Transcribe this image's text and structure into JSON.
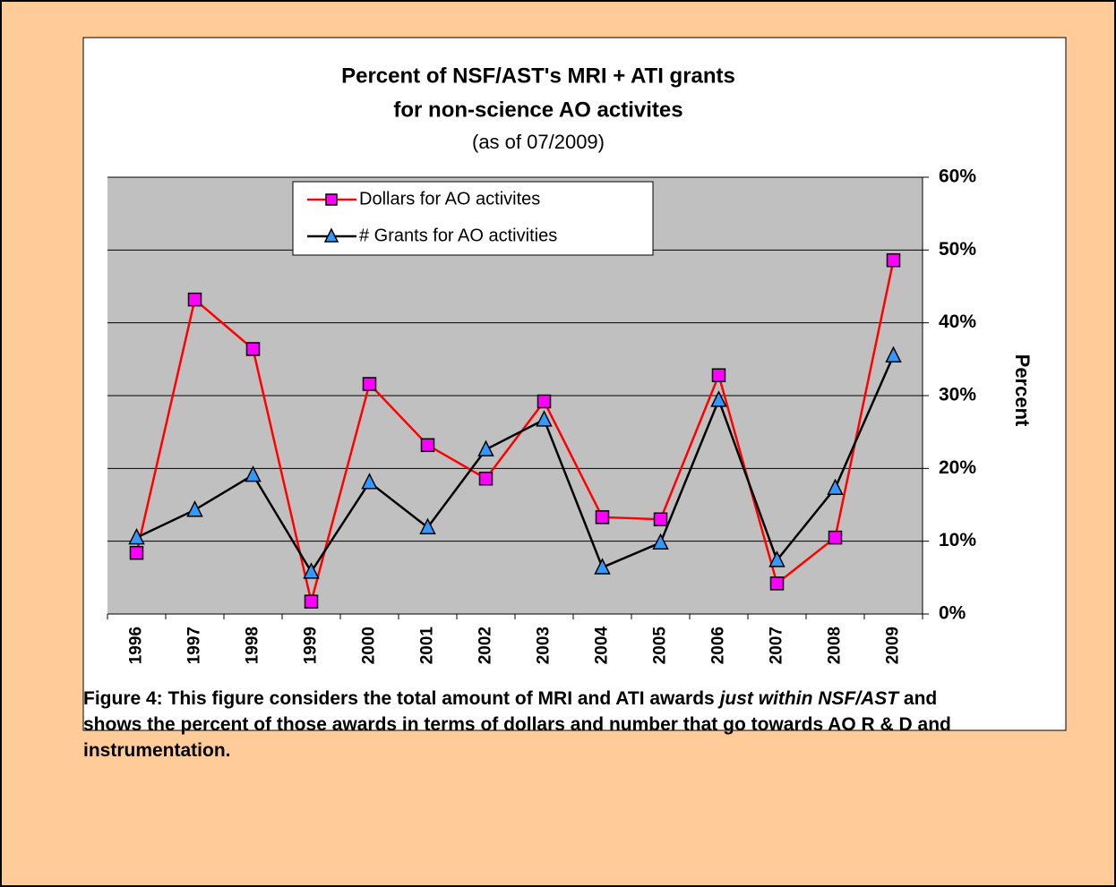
{
  "chart_data": {
    "type": "line",
    "title": [
      "Percent of NSF/AST's  MRI + ATI grants",
      "for non-science AO activites"
    ],
    "subtitle": "(as of 07/2009)",
    "y_label": "Percent",
    "categories": [
      "1996",
      "1997",
      "1998",
      "1999",
      "2000",
      "2001",
      "2002",
      "2003",
      "2004",
      "2005",
      "2006",
      "2007",
      "2008",
      "2009"
    ],
    "series": [
      {
        "name": "Dollars for AO activites",
        "color": "#ff0000",
        "marker": "square",
        "marker_color": "#ff00ff",
        "values": [
          8.4,
          43.2,
          36.4,
          1.7,
          31.6,
          23.2,
          18.6,
          29.2,
          13.3,
          13.0,
          32.8,
          4.2,
          10.5,
          48.6
        ]
      },
      {
        "name": "# Grants for AO activities",
        "color": "#000000",
        "marker": "triangle",
        "marker_color": "#3399ff",
        "values": [
          10.5,
          14.3,
          19.1,
          5.8,
          18.1,
          11.9,
          22.6,
          26.7,
          6.4,
          9.8,
          29.4,
          7.4,
          17.3,
          35.5
        ]
      }
    ],
    "ylim": [
      0,
      60
    ],
    "yticks": [
      {
        "value": 0,
        "label": "0%"
      },
      {
        "value": 10,
        "label": "10%"
      },
      {
        "value": 20,
        "label": "20%"
      },
      {
        "value": 30,
        "label": "30%"
      },
      {
        "value": 40,
        "label": "40%"
      },
      {
        "value": 50,
        "label": "50%"
      },
      {
        "value": 60,
        "label": "60%"
      }
    ],
    "grid": true,
    "legend": "top"
  },
  "caption": [
    {
      "text": "Figure 4: This figure considers the total amount of MRI and ATI awards ",
      "italic": false
    },
    {
      "text": "just within NSF/AST",
      "italic": true
    },
    {
      "text": " and shows the percent of those awards in terms of dollars and number that go towards AO R & D and instrumentation.",
      "italic": false
    }
  ]
}
